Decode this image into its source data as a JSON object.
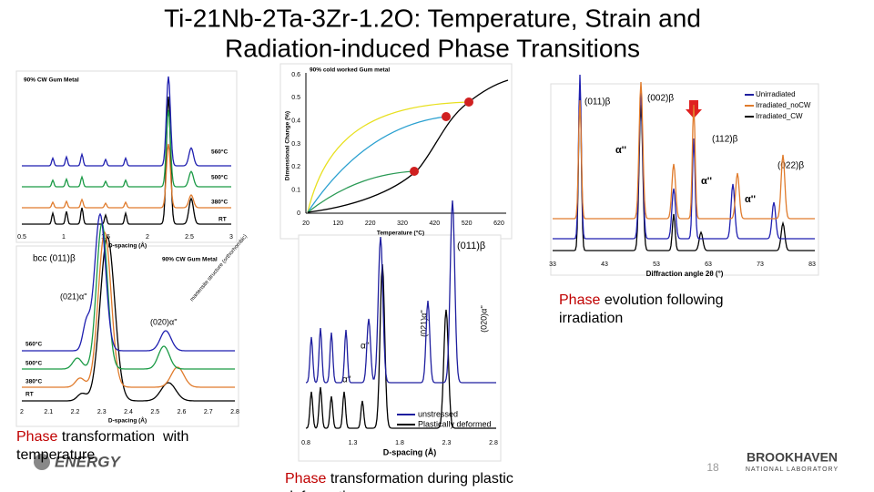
{
  "header": {
    "title_lines": [
      "Ti-21Nb-2Ta-3Zr-1.2O: Temperature, Strain and",
      "Radiation-induced Phase Transitions"
    ]
  },
  "panels": {
    "temperature_wide": {
      "title": "90% CW Gum Metal",
      "traces": [
        "560°C",
        "500°C",
        "380°C",
        "RT"
      ],
      "xticks": [
        "0.5",
        "1",
        "1.5",
        "2",
        "2.5",
        "3"
      ],
      "xlabel": "D-spacing (Å)"
    },
    "temperature_zoom": {
      "peak": "bcc (011)β",
      "title": "90% CW Gum Metal",
      "annotations": [
        "(021)α''",
        "(020)α''",
        "martensite structure (orthorhombic)"
      ],
      "traces": [
        "560°C",
        "500°C",
        "380°C",
        "RT"
      ],
      "xticks": [
        "2",
        "2.1",
        "2.2",
        "2.3",
        "2.4",
        "2.5",
        "2.6",
        "2.7",
        "2.8"
      ],
      "xlabel": "D-spacing (Å)"
    },
    "dilatometry": {
      "title": "90% cold worked Gum metal",
      "ylabel": "Dimensional Change (%)",
      "yticks": [
        "0",
        "0.1",
        "0.2",
        "0.3",
        "0.4",
        "0.5",
        "0.6"
      ],
      "xticks": [
        "20",
        "120",
        "220",
        "320",
        "420",
        "520",
        "620"
      ],
      "xlabel": "Temperature (°C)"
    },
    "strain": {
      "annotations": [
        "(011)β",
        "(021)α''",
        "(020)α''",
        "α''",
        "α''"
      ],
      "legend": [
        "unstressed",
        "Plastically deformed"
      ],
      "xticks": [
        "0.8",
        "1.3",
        "1.8",
        "2.3",
        "2.8"
      ],
      "xlabel": "D-spacing (Å)"
    },
    "irradiation": {
      "annotations": [
        "(011)β",
        "(002)β",
        "(112)β",
        "(022)β",
        "α''",
        "α''",
        "α''"
      ],
      "legend": [
        "Unirradiated",
        "Irradiated_noCW",
        "Irradiated_CW"
      ],
      "xticks": [
        "33",
        "43",
        "53",
        "63",
        "73",
        "83"
      ],
      "xlabel": "Diffraction angle 2θ (°)"
    }
  },
  "captions": {
    "irradiation": {
      "highlight": "Phase",
      "text": "evolution following irradiation"
    },
    "temperature": {
      "highlight": "Phase",
      "text": "transformation  with temperature"
    },
    "plastic": {
      "highlight": "Phase",
      "text": "transformation during plastic deformation"
    }
  },
  "footer": {
    "page_number": "18",
    "left_logo": "ENERGY",
    "right_logo": "BROOKHAVEN",
    "right_logo_sub": "NATIONAL LABORATORY"
  }
}
